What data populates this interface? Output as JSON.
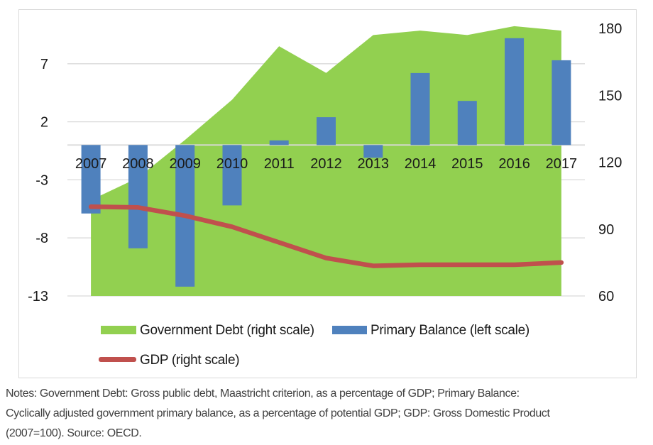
{
  "legend": {
    "items": [
      {
        "label": "Government Debt (right scale)",
        "swatch": "area"
      },
      {
        "label": "Primary Balance (left scale)",
        "swatch": "bar"
      },
      {
        "label": "GDP (right scale)",
        "swatch": "line"
      }
    ]
  },
  "notes": {
    "lines": [
      "Notes: Government Debt: Gross public debt, Maastricht criterion, as a percentage of GDP; Primary Balance:",
      "Cyclically adjusted government primary balance, as a percentage of potential GDP; GDP: Gross Domestic Product",
      "(2007=100). Source: OECD."
    ]
  },
  "chart_data": {
    "type": "combo",
    "categories": [
      "2007",
      "2008",
      "2009",
      "2010",
      "2011",
      "2012",
      "2013",
      "2014",
      "2015",
      "2016",
      "2017"
    ],
    "series": [
      {
        "name": "Government Debt (right scale)",
        "type": "area",
        "axis": "right",
        "color": "#92D050",
        "values": [
          103,
          113,
          130,
          148,
          172,
          160,
          177,
          179,
          177,
          181,
          179
        ]
      },
      {
        "name": "Primary Balance (left scale)",
        "type": "bar",
        "axis": "left",
        "color": "#4F81BD",
        "values": [
          -5.9,
          -8.9,
          -12.2,
          -5.2,
          0.4,
          2.4,
          -1.1,
          6.2,
          3.8,
          9.2,
          7.3
        ]
      },
      {
        "name": "GDP (right scale)",
        "type": "line",
        "axis": "right",
        "color": "#C0504D",
        "values": [
          100,
          99.7,
          96,
          91,
          84,
          77,
          73.5,
          74,
          74,
          74,
          75
        ]
      }
    ],
    "left_axis": {
      "ticks": [
        7,
        2,
        -3,
        -8,
        -13
      ],
      "range": [
        -13,
        11.5
      ],
      "baseline": 0
    },
    "right_axis": {
      "ticks": [
        180,
        150,
        120,
        90,
        60
      ],
      "range": [
        60,
        185
      ]
    },
    "gridlines": true,
    "legend_position": "bottom",
    "colors": {
      "debt_area": "#92D050",
      "balance_bar": "#4F81BD",
      "gdp_line": "#C0504D",
      "gridline": "#D9D9D9",
      "axis_text": "#1A1A1A",
      "notes_text": "#404040"
    }
  }
}
